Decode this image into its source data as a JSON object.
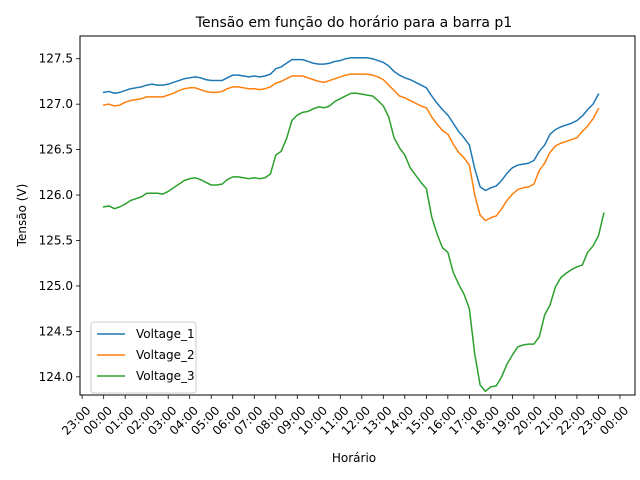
{
  "chart_data": {
    "type": "line",
    "title": "Tensão em função do horário para a barra p1",
    "xlabel": "Horário",
    "ylabel": "Tensão (V)",
    "x_tick_labels": [
      "23:00",
      "00:00",
      "01:00",
      "02:00",
      "03:00",
      "04:00",
      "05:00",
      "06:00",
      "07:00",
      "08:00",
      "09:00",
      "10:00",
      "11:00",
      "12:00",
      "13:00",
      "14:00",
      "15:00",
      "16:00",
      "17:00",
      "18:00",
      "19:00",
      "20:00",
      "21:00",
      "22:00",
      "23:00",
      "00:00"
    ],
    "x_range_hours": [
      -1.1,
      24.7
    ],
    "ylim": [
      123.8,
      127.75
    ],
    "yticks": [
      124.0,
      124.5,
      125.0,
      125.5,
      126.0,
      126.5,
      127.0,
      127.5
    ],
    "legend_position": "lower left",
    "grid": false,
    "series": [
      {
        "name": "Voltage_1",
        "color": "#1f77b4",
        "points": [
          [
            0.0,
            127.13
          ],
          [
            0.25,
            127.14
          ],
          [
            0.5,
            127.12
          ],
          [
            0.75,
            127.13
          ],
          [
            1.0,
            127.15
          ],
          [
            1.25,
            127.17
          ],
          [
            1.5,
            127.18
          ],
          [
            1.75,
            127.19
          ],
          [
            2.0,
            127.21
          ],
          [
            2.25,
            127.22
          ],
          [
            2.5,
            127.21
          ],
          [
            2.75,
            127.21
          ],
          [
            3.0,
            127.22
          ],
          [
            3.25,
            127.24
          ],
          [
            3.5,
            127.26
          ],
          [
            3.75,
            127.28
          ],
          [
            4.0,
            127.29
          ],
          [
            4.25,
            127.3
          ],
          [
            4.5,
            127.29
          ],
          [
            4.75,
            127.27
          ],
          [
            5.0,
            127.26
          ],
          [
            5.25,
            127.26
          ],
          [
            5.5,
            127.26
          ],
          [
            5.75,
            127.29
          ],
          [
            6.0,
            127.32
          ],
          [
            6.25,
            127.32
          ],
          [
            6.5,
            127.31
          ],
          [
            6.75,
            127.3
          ],
          [
            7.0,
            127.31
          ],
          [
            7.25,
            127.3
          ],
          [
            7.5,
            127.31
          ],
          [
            7.75,
            127.33
          ],
          [
            8.0,
            127.39
          ],
          [
            8.25,
            127.41
          ],
          [
            8.5,
            127.45
          ],
          [
            8.75,
            127.49
          ],
          [
            9.0,
            127.49
          ],
          [
            9.25,
            127.49
          ],
          [
            9.5,
            127.47
          ],
          [
            9.75,
            127.45
          ],
          [
            10.0,
            127.44
          ],
          [
            10.25,
            127.44
          ],
          [
            10.5,
            127.45
          ],
          [
            10.75,
            127.47
          ],
          [
            11.0,
            127.48
          ],
          [
            11.25,
            127.5
          ],
          [
            11.5,
            127.51
          ],
          [
            11.75,
            127.51
          ],
          [
            12.0,
            127.51
          ],
          [
            12.25,
            127.51
          ],
          [
            12.5,
            127.5
          ],
          [
            12.75,
            127.48
          ],
          [
            13.0,
            127.46
          ],
          [
            13.25,
            127.42
          ],
          [
            13.5,
            127.36
          ],
          [
            13.75,
            127.32
          ],
          [
            14.0,
            127.29
          ],
          [
            14.25,
            127.27
          ],
          [
            14.5,
            127.24
          ],
          [
            14.75,
            127.21
          ],
          [
            15.0,
            127.18
          ],
          [
            15.25,
            127.09
          ],
          [
            15.5,
            127.01
          ],
          [
            15.75,
            126.94
          ],
          [
            16.0,
            126.88
          ],
          [
            16.25,
            126.79
          ],
          [
            16.5,
            126.7
          ],
          [
            16.75,
            126.63
          ],
          [
            17.0,
            126.55
          ],
          [
            17.25,
            126.29
          ],
          [
            17.5,
            126.09
          ],
          [
            17.75,
            126.05
          ],
          [
            18.0,
            126.08
          ],
          [
            18.25,
            126.1
          ],
          [
            18.5,
            126.16
          ],
          [
            18.75,
            126.24
          ],
          [
            19.0,
            126.3
          ],
          [
            19.25,
            126.33
          ],
          [
            19.5,
            126.34
          ],
          [
            19.75,
            126.35
          ],
          [
            20.0,
            126.38
          ],
          [
            20.25,
            126.48
          ],
          [
            20.5,
            126.55
          ],
          [
            20.75,
            126.67
          ],
          [
            21.0,
            126.72
          ],
          [
            21.25,
            126.75
          ],
          [
            21.5,
            126.77
          ],
          [
            21.75,
            126.79
          ],
          [
            22.0,
            126.82
          ],
          [
            22.25,
            126.87
          ],
          [
            22.5,
            126.94
          ],
          [
            22.75,
            127.0
          ],
          [
            23.0,
            127.11
          ]
        ]
      },
      {
        "name": "Voltage_2",
        "color": "#ff7f0e",
        "points": [
          [
            0.0,
            126.99
          ],
          [
            0.25,
            127.0
          ],
          [
            0.5,
            126.98
          ],
          [
            0.75,
            126.99
          ],
          [
            1.0,
            127.02
          ],
          [
            1.25,
            127.04
          ],
          [
            1.5,
            127.05
          ],
          [
            1.75,
            127.06
          ],
          [
            2.0,
            127.08
          ],
          [
            2.25,
            127.08
          ],
          [
            2.5,
            127.08
          ],
          [
            2.75,
            127.08
          ],
          [
            3.0,
            127.1
          ],
          [
            3.25,
            127.12
          ],
          [
            3.5,
            127.15
          ],
          [
            3.75,
            127.17
          ],
          [
            4.0,
            127.18
          ],
          [
            4.25,
            127.18
          ],
          [
            4.5,
            127.16
          ],
          [
            4.75,
            127.14
          ],
          [
            5.0,
            127.13
          ],
          [
            5.25,
            127.13
          ],
          [
            5.5,
            127.14
          ],
          [
            5.75,
            127.17
          ],
          [
            6.0,
            127.19
          ],
          [
            6.25,
            127.19
          ],
          [
            6.5,
            127.18
          ],
          [
            6.75,
            127.17
          ],
          [
            7.0,
            127.17
          ],
          [
            7.25,
            127.16
          ],
          [
            7.5,
            127.17
          ],
          [
            7.75,
            127.19
          ],
          [
            8.0,
            127.23
          ],
          [
            8.25,
            127.25
          ],
          [
            8.5,
            127.28
          ],
          [
            8.75,
            127.31
          ],
          [
            9.0,
            127.31
          ],
          [
            9.25,
            127.31
          ],
          [
            9.5,
            127.29
          ],
          [
            9.75,
            127.27
          ],
          [
            10.0,
            127.25
          ],
          [
            10.25,
            127.24
          ],
          [
            10.5,
            127.26
          ],
          [
            10.75,
            127.28
          ],
          [
            11.0,
            127.3
          ],
          [
            11.25,
            127.32
          ],
          [
            11.5,
            127.33
          ],
          [
            11.75,
            127.33
          ],
          [
            12.0,
            127.33
          ],
          [
            12.25,
            127.33
          ],
          [
            12.5,
            127.32
          ],
          [
            12.75,
            127.3
          ],
          [
            13.0,
            127.27
          ],
          [
            13.25,
            127.21
          ],
          [
            13.5,
            127.15
          ],
          [
            13.75,
            127.09
          ],
          [
            14.0,
            127.07
          ],
          [
            14.25,
            127.04
          ],
          [
            14.5,
            127.01
          ],
          [
            14.75,
            126.98
          ],
          [
            15.0,
            126.96
          ],
          [
            15.25,
            126.86
          ],
          [
            15.5,
            126.78
          ],
          [
            15.75,
            126.71
          ],
          [
            16.0,
            126.67
          ],
          [
            16.25,
            126.56
          ],
          [
            16.5,
            126.47
          ],
          [
            16.75,
            126.41
          ],
          [
            17.0,
            126.33
          ],
          [
            17.25,
            126.0
          ],
          [
            17.5,
            125.78
          ],
          [
            17.75,
            125.72
          ],
          [
            18.0,
            125.75
          ],
          [
            18.25,
            125.77
          ],
          [
            18.5,
            125.85
          ],
          [
            18.75,
            125.94
          ],
          [
            19.0,
            126.01
          ],
          [
            19.25,
            126.06
          ],
          [
            19.5,
            126.08
          ],
          [
            19.75,
            126.09
          ],
          [
            20.0,
            126.12
          ],
          [
            20.25,
            126.27
          ],
          [
            20.5,
            126.35
          ],
          [
            20.75,
            126.47
          ],
          [
            21.0,
            126.54
          ],
          [
            21.25,
            126.57
          ],
          [
            21.5,
            126.59
          ],
          [
            21.75,
            126.61
          ],
          [
            22.0,
            126.63
          ],
          [
            22.25,
            126.7
          ],
          [
            22.5,
            126.76
          ],
          [
            22.75,
            126.84
          ],
          [
            23.0,
            126.95
          ]
        ]
      },
      {
        "name": "Voltage_3",
        "color": "#2ca02c",
        "points": [
          [
            0.0,
            125.87
          ],
          [
            0.25,
            125.88
          ],
          [
            0.5,
            125.85
          ],
          [
            0.75,
            125.87
          ],
          [
            1.0,
            125.9
          ],
          [
            1.25,
            125.94
          ],
          [
            1.5,
            125.96
          ],
          [
            1.75,
            125.98
          ],
          [
            2.0,
            126.02
          ],
          [
            2.25,
            126.02
          ],
          [
            2.5,
            126.02
          ],
          [
            2.75,
            126.01
          ],
          [
            3.0,
            126.04
          ],
          [
            3.25,
            126.08
          ],
          [
            3.5,
            126.12
          ],
          [
            3.75,
            126.16
          ],
          [
            4.0,
            126.18
          ],
          [
            4.25,
            126.19
          ],
          [
            4.5,
            126.17
          ],
          [
            4.75,
            126.14
          ],
          [
            5.0,
            126.11
          ],
          [
            5.25,
            126.11
          ],
          [
            5.5,
            126.12
          ],
          [
            5.75,
            126.17
          ],
          [
            6.0,
            126.2
          ],
          [
            6.25,
            126.2
          ],
          [
            6.5,
            126.19
          ],
          [
            6.75,
            126.18
          ],
          [
            7.0,
            126.19
          ],
          [
            7.25,
            126.18
          ],
          [
            7.5,
            126.19
          ],
          [
            7.75,
            126.23
          ],
          [
            8.0,
            126.44
          ],
          [
            8.25,
            126.48
          ],
          [
            8.5,
            126.62
          ],
          [
            8.75,
            126.82
          ],
          [
            9.0,
            126.88
          ],
          [
            9.25,
            126.91
          ],
          [
            9.5,
            126.92
          ],
          [
            9.75,
            126.95
          ],
          [
            10.0,
            126.97
          ],
          [
            10.25,
            126.96
          ],
          [
            10.5,
            126.98
          ],
          [
            10.75,
            127.03
          ],
          [
            11.0,
            127.06
          ],
          [
            11.25,
            127.09
          ],
          [
            11.5,
            127.12
          ],
          [
            11.75,
            127.12
          ],
          [
            12.0,
            127.11
          ],
          [
            12.25,
            127.1
          ],
          [
            12.5,
            127.09
          ],
          [
            12.75,
            127.04
          ],
          [
            13.0,
            126.98
          ],
          [
            13.25,
            126.86
          ],
          [
            13.5,
            126.63
          ],
          [
            13.75,
            126.52
          ],
          [
            14.0,
            126.44
          ],
          [
            14.25,
            126.3
          ],
          [
            14.5,
            126.22
          ],
          [
            14.75,
            126.14
          ],
          [
            15.0,
            126.07
          ],
          [
            15.25,
            125.76
          ],
          [
            15.5,
            125.57
          ],
          [
            15.75,
            125.42
          ],
          [
            16.0,
            125.37
          ],
          [
            16.25,
            125.15
          ],
          [
            16.5,
            125.02
          ],
          [
            16.75,
            124.91
          ],
          [
            17.0,
            124.75
          ],
          [
            17.25,
            124.25
          ],
          [
            17.5,
            123.91
          ],
          [
            17.75,
            123.84
          ],
          [
            18.0,
            123.89
          ],
          [
            18.25,
            123.9
          ],
          [
            18.5,
            124.0
          ],
          [
            18.75,
            124.14
          ],
          [
            19.0,
            124.24
          ],
          [
            19.25,
            124.33
          ],
          [
            19.5,
            124.35
          ],
          [
            19.75,
            124.36
          ],
          [
            20.0,
            124.36
          ],
          [
            20.25,
            124.44
          ],
          [
            20.5,
            124.68
          ],
          [
            20.75,
            124.79
          ],
          [
            21.0,
            124.99
          ],
          [
            21.25,
            125.09
          ],
          [
            21.5,
            125.14
          ],
          [
            21.75,
            125.18
          ],
          [
            22.0,
            125.21
          ],
          [
            22.25,
            125.23
          ],
          [
            22.5,
            125.37
          ],
          [
            22.75,
            125.44
          ],
          [
            23.0,
            125.55
          ],
          [
            23.25,
            125.8
          ]
        ]
      }
    ]
  }
}
